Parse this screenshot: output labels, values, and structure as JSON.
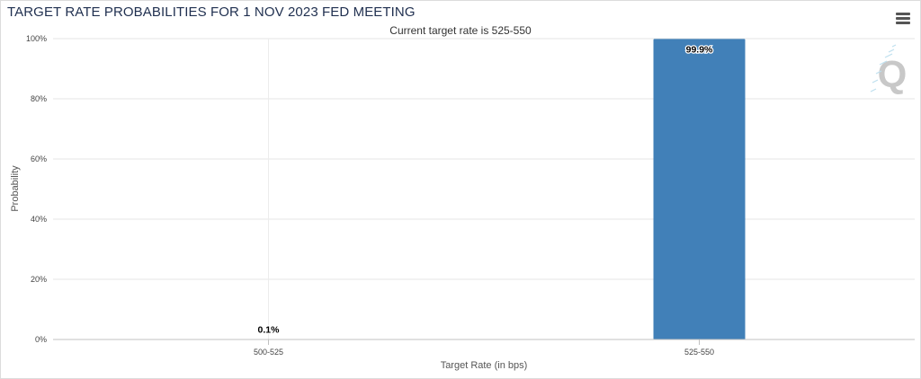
{
  "chart_data": {
    "type": "bar",
    "title": "TARGET RATE PROBABILITIES FOR 1 NOV 2023 FED MEETING",
    "subtitle": "Current target rate is 525-550",
    "xlabel": "Target Rate (in bps)",
    "ylabel": "Probability",
    "categories": [
      "500-525",
      "525-550"
    ],
    "values": [
      0.1,
      99.9
    ],
    "data_labels": [
      "0.1%",
      "99.9%"
    ],
    "ylim": [
      0,
      100
    ],
    "yticks": [
      0,
      20,
      40,
      60,
      80,
      100
    ],
    "ytick_labels": [
      "0%",
      "20%",
      "40%",
      "60%",
      "80%",
      "100%"
    ],
    "grid": true,
    "legend": "none",
    "bar_color": "#4180b8",
    "watermark": "Q"
  },
  "menu": {
    "icon": "hamburger-menu-icon"
  }
}
